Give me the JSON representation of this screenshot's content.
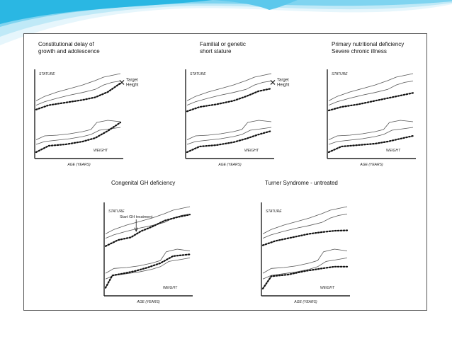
{
  "colors": {
    "accent": "#2ab7e3",
    "accent_light": "#c5ecf8",
    "border": "#555555",
    "ink": "#222222"
  },
  "figure": {
    "panels": [
      {
        "title": "Constitutional delay of\ngrowth and adolescence",
        "target": "Target\nHeight"
      },
      {
        "title": "Familial or genetic\nshort stature",
        "target": "Target\nHeight"
      },
      {
        "title": "Primary nutritional deficiency\nSevere chronic illness",
        "target": ""
      },
      {
        "title": "Congenital GH deficiency",
        "target": "",
        "annotation": "Start GH treatment"
      },
      {
        "title": "Turner Syndrome - untreated",
        "target": ""
      }
    ]
  },
  "chart_data": [
    {
      "type": "line",
      "title": "Constitutional delay of growth and adolescence",
      "xlabel": "AGE (YEARS)",
      "series_labels": [
        "STATURE",
        "WEIGHT"
      ],
      "annotations": [
        "Target Height"
      ]
    },
    {
      "type": "line",
      "title": "Familial or genetic short stature",
      "xlabel": "AGE (YEARS)",
      "series_labels": [
        "STATURE",
        "WEIGHT"
      ],
      "annotations": [
        "Target Height"
      ]
    },
    {
      "type": "line",
      "title": "Primary nutritional deficiency Severe chronic illness",
      "xlabel": "AGE (YEARS)",
      "series_labels": [
        "STATURE",
        "WEIGHT"
      ],
      "annotations": []
    },
    {
      "type": "line",
      "title": "Congenital GH deficiency",
      "xlabel": "AGE (YEARS)",
      "series_labels": [
        "STATURE",
        "WEIGHT"
      ],
      "annotations": [
        "Start GH treatment"
      ]
    },
    {
      "type": "line",
      "title": "Turner Syndrome - untreated",
      "xlabel": "AGE (YEARS)",
      "series_labels": [
        "STATURE",
        "WEIGHT"
      ],
      "annotations": []
    }
  ]
}
